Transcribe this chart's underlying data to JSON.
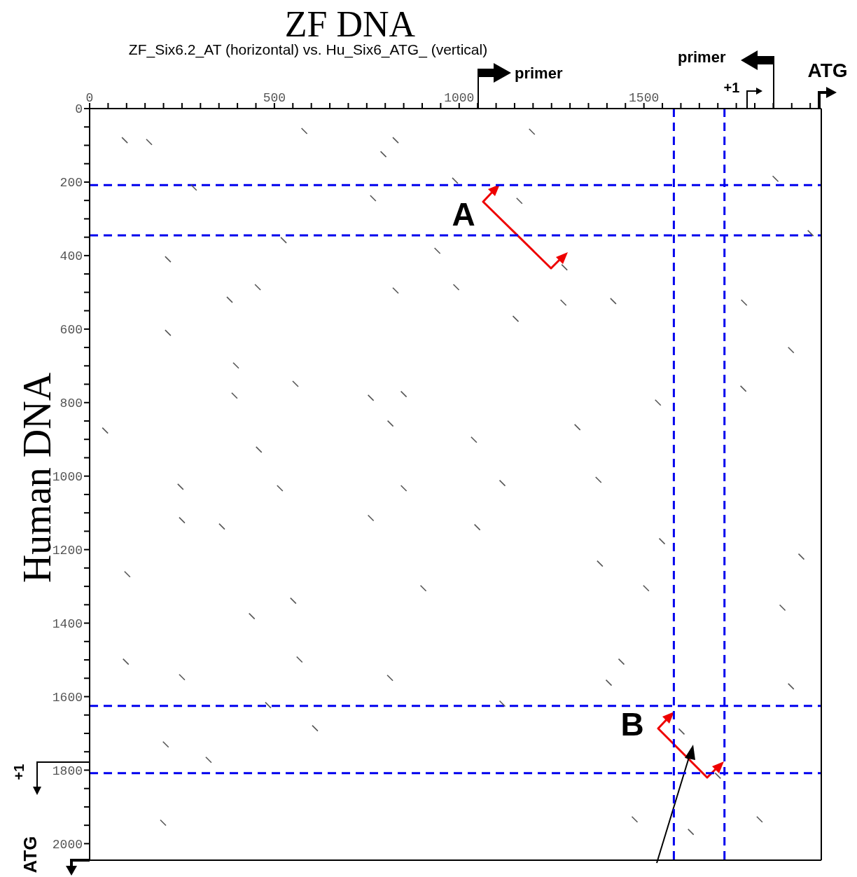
{
  "chart_data": {
    "type": "scatter",
    "title": "ZF DNA",
    "subtitle": "ZF_Six6.2_AT (horizontal) vs. Hu_Six6_ATG_ (vertical)",
    "ylabel": "Human DNA",
    "annotations": [
      "primer",
      "primer",
      "+1",
      "ATG",
      "+1",
      "ATG",
      "A",
      "B"
    ],
    "xlim": [
      0,
      1980
    ],
    "ylim": [
      2045,
      0
    ],
    "xticks": [
      0,
      {
        "value": 50,
        "label": null
      },
      {
        "value": 100,
        "label": null
      },
      {
        "value": 150,
        "label": null
      },
      {
        "value": 200,
        "label": null
      },
      {
        "value": 250,
        "label": null
      },
      {
        "value": 300,
        "label": null
      },
      {
        "value": 350,
        "label": null
      },
      {
        "value": 400,
        "label": null
      },
      {
        "value": 450,
        "label": null
      },
      500,
      {
        "value": 550,
        "label": null
      },
      {
        "value": 600,
        "label": null
      },
      {
        "value": 650,
        "label": null
      },
      {
        "value": 700,
        "label": null
      },
      {
        "value": 750,
        "label": null
      },
      {
        "value": 800,
        "label": null
      },
      {
        "value": 850,
        "label": null
      },
      {
        "value": 900,
        "label": null
      },
      {
        "value": 950,
        "label": null
      },
      1000,
      {
        "value": 1050,
        "label": null
      },
      {
        "value": 1100,
        "label": null
      },
      {
        "value": 1150,
        "label": null
      },
      {
        "value": 1200,
        "label": null
      },
      {
        "value": 1250,
        "label": null
      },
      {
        "value": 1300,
        "label": null
      },
      {
        "value": 1350,
        "label": null
      },
      {
        "value": 1400,
        "label": null
      },
      {
        "value": 1450,
        "label": null
      },
      1500,
      {
        "value": 1550,
        "label": null
      },
      {
        "value": 1600,
        "label": null
      },
      {
        "value": 1650,
        "label": null
      },
      {
        "value": 1700,
        "label": null
      },
      {
        "value": 1750,
        "label": null
      },
      {
        "value": 1800,
        "label": null
      },
      {
        "value": 1850,
        "label": null
      },
      {
        "value": 1900,
        "label": null
      },
      {
        "value": 1950,
        "label": null
      }
    ],
    "yticks": [
      0,
      {
        "value": 50,
        "label": null
      },
      {
        "value": 100,
        "label": null
      },
      {
        "value": 150,
        "label": null
      },
      200,
      {
        "value": 250,
        "label": null
      },
      {
        "value": 300,
        "label": null
      },
      {
        "value": 350,
        "label": null
      },
      400,
      {
        "value": 450,
        "label": null
      },
      {
        "value": 500,
        "label": null
      },
      {
        "value": 550,
        "label": null
      },
      600,
      {
        "value": 650,
        "label": null
      },
      {
        "value": 700,
        "label": null
      },
      {
        "value": 750,
        "label": null
      },
      800,
      {
        "value": 850,
        "label": null
      },
      {
        "value": 900,
        "label": null
      },
      {
        "value": 950,
        "label": null
      },
      1000,
      {
        "value": 1050,
        "label": null
      },
      {
        "value": 1100,
        "label": null
      },
      {
        "value": 1150,
        "label": null
      },
      1200,
      {
        "value": 1250,
        "label": null
      },
      {
        "value": 1300,
        "label": null
      },
      {
        "value": 1350,
        "label": null
      },
      1400,
      {
        "value": 1450,
        "label": null
      },
      {
        "value": 1500,
        "label": null
      },
      {
        "value": 1550,
        "label": null
      },
      1600,
      {
        "value": 1650,
        "label": null
      },
      {
        "value": 1700,
        "label": null
      },
      {
        "value": 1750,
        "label": null
      },
      1800,
      {
        "value": 1850,
        "label": null
      },
      {
        "value": 1900,
        "label": null
      },
      {
        "value": 1950,
        "label": null
      },
      2000
    ],
    "ref_lines": [
      {
        "axis": "x",
        "value": 1581,
        "color": "#0000ee",
        "line_style": "dashed"
      },
      {
        "axis": "x",
        "value": 1718,
        "color": "#0000ee",
        "line_style": "dashed"
      },
      {
        "axis": "y",
        "value": 208,
        "color": "#0000ee",
        "line_style": "dashed"
      },
      {
        "axis": "y",
        "value": 345,
        "color": "#0000ee",
        "line_style": "dashed"
      },
      {
        "axis": "y",
        "value": 1625,
        "color": "#0000ee",
        "line_style": "dashed"
      },
      {
        "axis": "y",
        "value": 1808,
        "color": "#0000ee",
        "line_style": "dashed"
      }
    ],
    "series": [
      {
        "color": "#555555",
        "x": [
          95,
          161,
          581,
          828,
          1197,
          795,
          989,
          1163,
          282,
          767,
          525,
          212,
          941,
          1285,
          455,
          379,
          828,
          992,
          1282,
          1417,
          1771,
          1153,
          212,
          396,
          557,
          392,
          761,
          850,
          814,
          1320,
          42,
          458,
          1040,
          246,
          515,
          850,
          1117,
          1377,
          250,
          358,
          761,
          1049,
          1549,
          1381,
          102,
          551,
          903,
          1506,
          1875,
          439,
          1926,
          98,
          568,
          1439,
          250,
          813,
          1405,
          483,
          610,
          206,
          322,
          1602,
          1700,
          1898,
          199,
          1475,
          1813,
          1898,
          1769,
          1856,
          1951,
          1538,
          1117,
          1627
        ],
        "values": [
          86,
          91,
          61,
          86,
          63,
          124,
          196,
          251,
          215,
          244,
          358,
          410,
          387,
          432,
          486,
          520,
          495,
          486,
          528,
          524,
          528,
          572,
          610,
          699,
          749,
          781,
          787,
          777,
          857,
          867,
          876,
          928,
          901,
          1029,
          1033,
          1033,
          1019,
          1010,
          1120,
          1137,
          1114,
          1139,
          1177,
          1238,
          1267,
          1339,
          1305,
          1305,
          1358,
          1381,
          1219,
          1505,
          1499,
          1505,
          1547,
          1549,
          1562,
          1623,
          1686,
          1730,
          1772,
          1695,
          1815,
          1572,
          1943,
          1934,
          1934,
          657,
          762,
          191,
          339,
          800,
          1619,
          1968
        ]
      }
    ]
  }
}
